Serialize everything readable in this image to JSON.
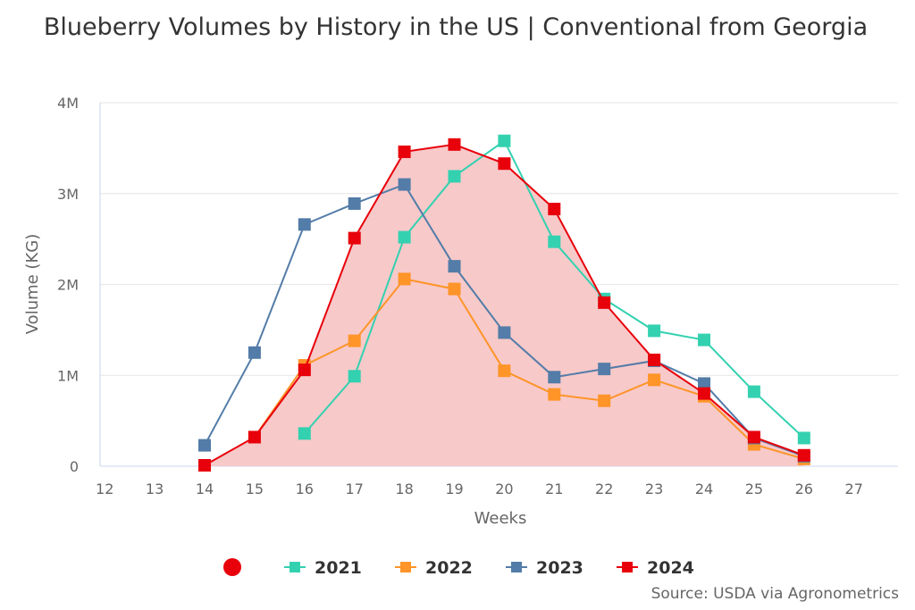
{
  "chart_data": {
    "type": "line",
    "title": "Blueberry Volumes by History in the US | Conventional from Georgia",
    "xlabel": "Weeks",
    "ylabel": "Volume (KG)",
    "x_ticks": [
      12,
      13,
      14,
      15,
      16,
      17,
      18,
      19,
      20,
      21,
      22,
      23,
      24,
      25,
      26,
      27
    ],
    "xlim": [
      12,
      27.8
    ],
    "y_ticks": [
      {
        "value": 0,
        "label": "0"
      },
      {
        "value": 1000000,
        "label": "1M"
      },
      {
        "value": 2000000,
        "label": "2M"
      },
      {
        "value": 3000000,
        "label": "3M"
      },
      {
        "value": 4000000,
        "label": "4M"
      }
    ],
    "ylim": [
      0,
      4000000
    ],
    "grid": "horizontal",
    "legend_position": "bottom",
    "series": [
      {
        "name": "2021",
        "color": "#33d1b0",
        "area": false,
        "x": [
          16,
          17,
          18,
          19,
          20,
          21,
          22,
          23,
          24,
          25,
          26
        ],
        "values": [
          360000,
          990000,
          2520000,
          3190000,
          3580000,
          2470000,
          1840000,
          1490000,
          1390000,
          820000,
          310000
        ]
      },
      {
        "name": "2022",
        "color": "#ff9428",
        "area": false,
        "x": [
          15,
          16,
          17,
          18,
          19,
          20,
          21,
          22,
          23,
          24,
          25,
          26
        ],
        "values": [
          320000,
          1110000,
          1380000,
          2060000,
          1950000,
          1050000,
          790000,
          720000,
          950000,
          770000,
          240000,
          80000
        ]
      },
      {
        "name": "2023",
        "color": "#537ca8",
        "area": false,
        "x": [
          14,
          15,
          16,
          17,
          18,
          19,
          20,
          21,
          22,
          23,
          24,
          25,
          26
        ],
        "values": [
          230000,
          1250000,
          2660000,
          2890000,
          3100000,
          2200000,
          1470000,
          980000,
          1070000,
          1160000,
          910000,
          310000,
          110000
        ]
      },
      {
        "name": "2024",
        "color": "#e8000b",
        "area": true,
        "area_color": "#f7c9c9",
        "x": [
          14,
          15,
          16,
          17,
          18,
          19,
          20,
          21,
          22,
          23,
          24,
          25,
          26
        ],
        "values": [
          10000,
          320000,
          1060000,
          2510000,
          3460000,
          3540000,
          3330000,
          2830000,
          1800000,
          1170000,
          800000,
          320000,
          120000
        ]
      }
    ],
    "legend_extra_marker": {
      "shape": "circle",
      "color": "#e8000b"
    },
    "source": "Source: USDA via Agronometrics"
  }
}
